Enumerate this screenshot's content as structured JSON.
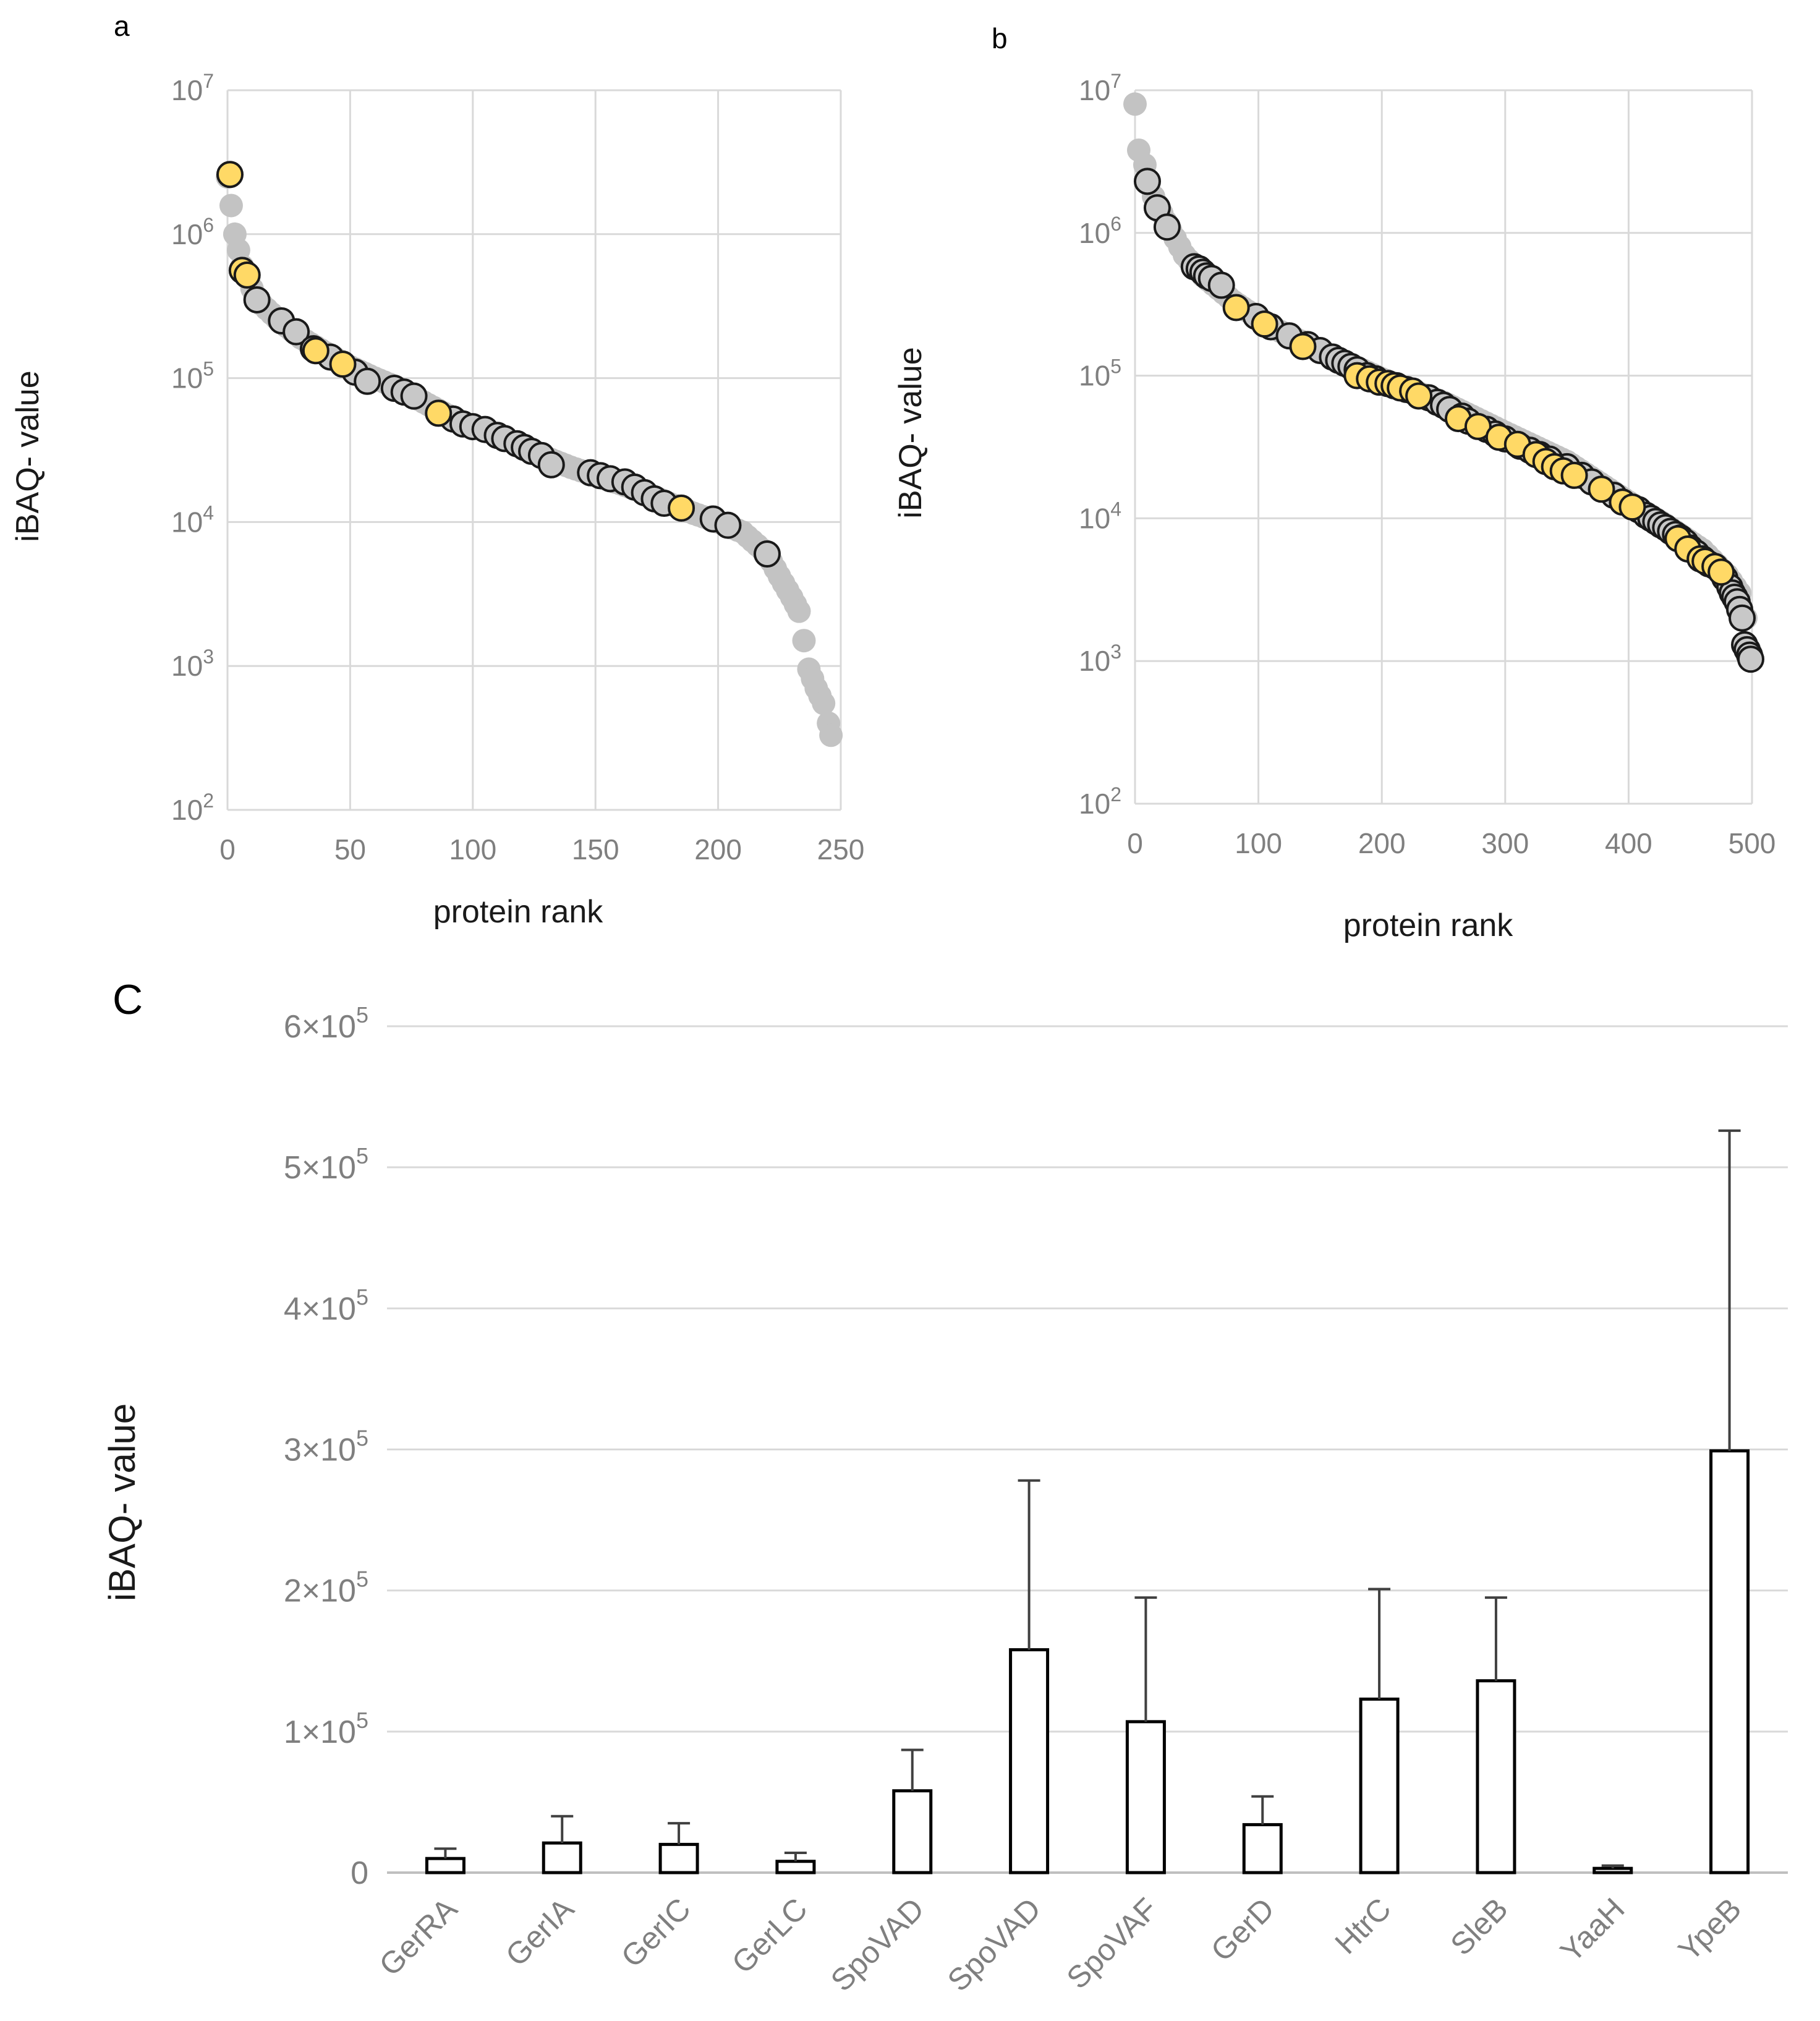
{
  "colors": {
    "highlight": "#ffd966",
    "background_point": "#c3c3c3",
    "outlined_point": "#c8c8c8",
    "outline": "#1a1a1a",
    "grid": "#d9d9d9",
    "tick_text": "#7f7f7f"
  },
  "chart_data": [
    {
      "panel": "a",
      "type": "scatter",
      "y_scale": "log",
      "xlabel": "protein rank",
      "ylabel": "iBAQ- value",
      "xlim": [
        0,
        250
      ],
      "ylim": [
        100,
        10000000
      ],
      "x_ticks": [
        "0",
        "50",
        "100",
        "150",
        "200",
        "250"
      ],
      "y_ticks": [
        {
          "base": "10",
          "exp": "2"
        },
        {
          "base": "10",
          "exp": "3"
        },
        {
          "base": "10",
          "exp": "4"
        },
        {
          "base": "10",
          "exp": "5"
        },
        {
          "base": "10",
          "exp": "6"
        },
        {
          "base": "10",
          "exp": "7"
        }
      ],
      "background_curve": [
        [
          0,
          2500000
        ],
        [
          3,
          1000000
        ],
        [
          6,
          600000
        ],
        [
          12,
          350000
        ],
        [
          20,
          260000
        ],
        [
          30,
          190000
        ],
        [
          40,
          150000
        ],
        [
          50,
          120000
        ],
        [
          60,
          100000
        ],
        [
          70,
          85000
        ],
        [
          80,
          68000
        ],
        [
          90,
          55000
        ],
        [
          100,
          46000
        ],
        [
          110,
          40000
        ],
        [
          120,
          34000
        ],
        [
          130,
          28000
        ],
        [
          140,
          24000
        ],
        [
          150,
          21000
        ],
        [
          160,
          18500
        ],
        [
          170,
          16000
        ],
        [
          180,
          13500
        ],
        [
          190,
          11500
        ],
        [
          200,
          10000
        ],
        [
          210,
          8500
        ],
        [
          220,
          6000
        ],
        [
          225,
          4200
        ],
        [
          230,
          3000
        ],
        [
          233,
          2400
        ],
        [
          235,
          1500
        ],
        [
          237,
          950
        ],
        [
          240,
          700
        ],
        [
          243,
          550
        ],
        [
          245,
          400
        ],
        [
          246,
          330
        ]
      ],
      "outlined_points": [
        [
          12,
          350000
        ],
        [
          22,
          250000
        ],
        [
          28,
          210000
        ],
        [
          35,
          160000
        ],
        [
          42,
          140000
        ],
        [
          52,
          110000
        ],
        [
          57,
          95000
        ],
        [
          68,
          85000
        ],
        [
          72,
          80000
        ],
        [
          76,
          75000
        ],
        [
          92,
          52000
        ],
        [
          96,
          48000
        ],
        [
          100,
          46000
        ],
        [
          105,
          44000
        ],
        [
          110,
          40000
        ],
        [
          113,
          38000
        ],
        [
          118,
          35000
        ],
        [
          121,
          33000
        ],
        [
          124,
          31000
        ],
        [
          128,
          29000
        ],
        [
          132,
          25000
        ],
        [
          148,
          22000
        ],
        [
          152,
          21000
        ],
        [
          156,
          20000
        ],
        [
          162,
          19000
        ],
        [
          166,
          17500
        ],
        [
          170,
          16000
        ],
        [
          174,
          14500
        ],
        [
          178,
          13500
        ],
        [
          198,
          10500
        ],
        [
          204,
          9500
        ],
        [
          220,
          6000
        ]
      ],
      "highlight_points": [
        [
          1,
          2600000
        ],
        [
          6,
          560000
        ],
        [
          8,
          520000
        ],
        [
          36,
          155000
        ],
        [
          47,
          125000
        ],
        [
          86,
          57000
        ],
        [
          185,
          12500
        ]
      ]
    },
    {
      "panel": "b",
      "type": "scatter",
      "y_scale": "log",
      "xlabel": "protein rank",
      "ylabel": "iBAQ- value",
      "xlim": [
        0,
        500
      ],
      "ylim": [
        100,
        10000000
      ],
      "x_ticks": [
        "0",
        "100",
        "200",
        "300",
        "400",
        "500"
      ],
      "y_ticks": [
        {
          "base": "10",
          "exp": "2"
        },
        {
          "base": "10",
          "exp": "3"
        },
        {
          "base": "10",
          "exp": "4"
        },
        {
          "base": "10",
          "exp": "5"
        },
        {
          "base": "10",
          "exp": "6"
        },
        {
          "base": "10",
          "exp": "7"
        }
      ],
      "background_curve": [
        [
          0,
          8000000
        ],
        [
          3,
          3800000
        ],
        [
          8,
          3000000
        ],
        [
          15,
          1800000
        ],
        [
          25,
          1200000
        ],
        [
          40,
          700000
        ],
        [
          55,
          500000
        ],
        [
          80,
          330000
        ],
        [
          110,
          220000
        ],
        [
          150,
          150000
        ],
        [
          200,
          95000
        ],
        [
          250,
          65000
        ],
        [
          300,
          40000
        ],
        [
          350,
          25000
        ],
        [
          400,
          13000
        ],
        [
          430,
          9000
        ],
        [
          460,
          6000
        ],
        [
          480,
          4000
        ],
        [
          490,
          3000
        ],
        [
          495,
          2000
        ],
        [
          498,
          1200
        ]
      ],
      "outlined_points": [
        [
          10,
          2300000
        ],
        [
          18,
          1500000
        ],
        [
          26,
          1100000
        ],
        [
          48,
          580000
        ],
        [
          52,
          560000
        ],
        [
          55,
          530000
        ],
        [
          58,
          500000
        ],
        [
          62,
          480000
        ],
        [
          70,
          430000
        ],
        [
          98,
          260000
        ],
        [
          110,
          220000
        ],
        [
          125,
          190000
        ],
        [
          140,
          165000
        ],
        [
          150,
          150000
        ],
        [
          160,
          135000
        ],
        [
          165,
          128000
        ],
        [
          170,
          122000
        ],
        [
          175,
          116000
        ],
        [
          180,
          110000
        ],
        [
          188,
          100000
        ],
        [
          195,
          95000
        ],
        [
          205,
          88000
        ],
        [
          212,
          85000
        ],
        [
          220,
          80000
        ],
        [
          238,
          70000
        ],
        [
          245,
          65000
        ],
        [
          250,
          62000
        ],
        [
          255,
          58000
        ],
        [
          265,
          52000
        ],
        [
          270,
          48000
        ],
        [
          285,
          42000
        ],
        [
          292,
          39000
        ],
        [
          300,
          36000
        ],
        [
          312,
          32000
        ],
        [
          320,
          30000
        ],
        [
          328,
          28000
        ],
        [
          336,
          26000
        ],
        [
          350,
          23000
        ],
        [
          362,
          20000
        ],
        [
          370,
          18000
        ],
        [
          388,
          14500
        ],
        [
          395,
          13000
        ],
        [
          408,
          11500
        ],
        [
          414,
          10500
        ],
        [
          418,
          10000
        ],
        [
          422,
          9500
        ],
        [
          426,
          9000
        ],
        [
          430,
          8600
        ],
        [
          434,
          8100
        ],
        [
          438,
          7700
        ],
        [
          442,
          7300
        ],
        [
          446,
          6800
        ],
        [
          450,
          6200
        ],
        [
          455,
          5700
        ],
        [
          460,
          5200
        ],
        [
          465,
          4800
        ],
        [
          478,
          3800
        ],
        [
          482,
          3300
        ],
        [
          484,
          3000
        ],
        [
          486,
          2800
        ],
        [
          488,
          2600
        ],
        [
          490,
          2300
        ],
        [
          492,
          2000
        ],
        [
          494,
          1300
        ],
        [
          496,
          1200
        ],
        [
          498,
          1100
        ],
        [
          499,
          1030
        ]
      ],
      "highlight_points": [
        [
          82,
          300000
        ],
        [
          105,
          230000
        ],
        [
          136,
          160000
        ],
        [
          180,
          100000
        ],
        [
          190,
          95000
        ],
        [
          198,
          90000
        ],
        [
          205,
          88000
        ],
        [
          210,
          85000
        ],
        [
          215,
          82000
        ],
        [
          225,
          78000
        ],
        [
          230,
          72000
        ],
        [
          262,
          50000
        ],
        [
          278,
          44000
        ],
        [
          295,
          37000
        ],
        [
          310,
          33000
        ],
        [
          325,
          28000
        ],
        [
          333,
          25000
        ],
        [
          340,
          23000
        ],
        [
          347,
          21500
        ],
        [
          356,
          20000
        ],
        [
          378,
          16000
        ],
        [
          395,
          13000
        ],
        [
          403,
          12000
        ],
        [
          440,
          7200
        ],
        [
          448,
          6100
        ],
        [
          458,
          5200
        ],
        [
          462,
          5000
        ],
        [
          470,
          4600
        ],
        [
          475,
          4200
        ]
      ]
    },
    {
      "panel": "c",
      "type": "bar",
      "ylabel": "iBAQ- value",
      "ylim": [
        0,
        600000
      ],
      "y_ticks": [
        {
          "mant": "0",
          "exp": ""
        },
        {
          "mant": "1×10",
          "exp": "5"
        },
        {
          "mant": "2×10",
          "exp": "5"
        },
        {
          "mant": "3×10",
          "exp": "5"
        },
        {
          "mant": "4×10",
          "exp": "5"
        },
        {
          "mant": "5×10",
          "exp": "5"
        },
        {
          "mant": "6×10",
          "exp": "5"
        }
      ],
      "categories": [
        "GerRA",
        "GerIA",
        "GerIC",
        "GerLC",
        "SpoVAD",
        "SpoVAD",
        "SpoVAF",
        "GerD",
        "HtrC",
        "SleB",
        "YaaH",
        "YpeB"
      ],
      "values": [
        10000,
        21000,
        20000,
        8000,
        58000,
        158000,
        107000,
        34000,
        123000,
        136000,
        3000,
        299000
      ],
      "errors": [
        7000,
        19000,
        15000,
        6000,
        29000,
        120000,
        88000,
        20000,
        78000,
        59000,
        2000,
        227000
      ]
    }
  ],
  "panel_labels": {
    "a": "a",
    "b": "b",
    "c": "C"
  }
}
